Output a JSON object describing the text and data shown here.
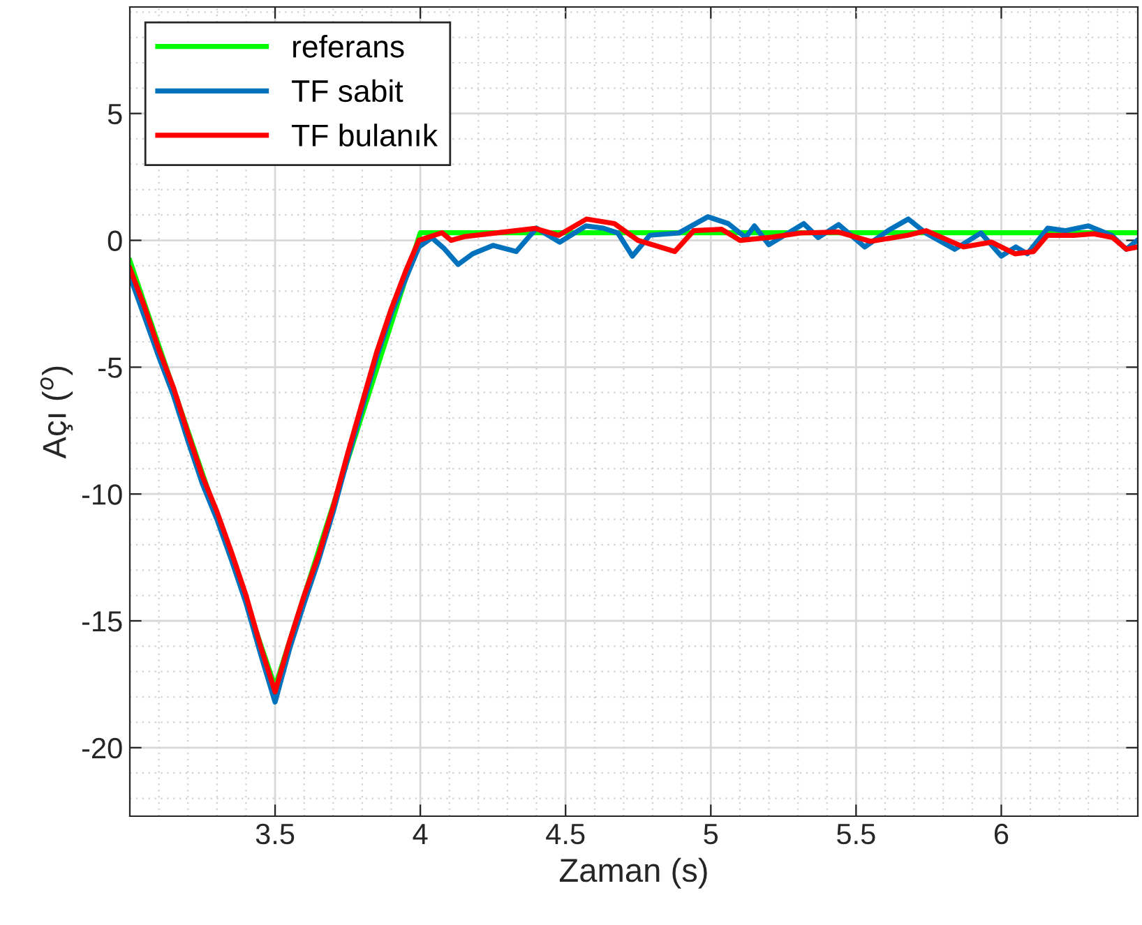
{
  "chart_data": {
    "type": "line",
    "xlabel": "Zaman (s)",
    "ylabel": "Açı ($^{o}$)",
    "xlim": [
      3.0,
      6.47
    ],
    "ylim": [
      -22.7,
      9.2
    ],
    "xticks": [
      3.5,
      4,
      4.5,
      5,
      5.5,
      6
    ],
    "yticks": [
      -20,
      -15,
      -10,
      -5,
      0,
      5
    ],
    "grid": true,
    "legend": "top left",
    "line_style": "solid",
    "marker": "none",
    "series": [
      {
        "name": "referans",
        "color": "#00ff00",
        "x": [
          3.0,
          3.5,
          4.0,
          6.47
        ],
        "values": [
          -0.8,
          -17.6,
          0.3,
          0.3
        ]
      },
      {
        "name": "TF sabit",
        "color": "#0072bd",
        "x": [
          3.0,
          3.05,
          3.1,
          3.15,
          3.2,
          3.25,
          3.3,
          3.35,
          3.4,
          3.45,
          3.5,
          3.55,
          3.6,
          3.65,
          3.7,
          3.75,
          3.8,
          3.85,
          3.9,
          3.95,
          3.995,
          4.04,
          4.08,
          4.13,
          4.18,
          4.25,
          4.33,
          4.4,
          4.48,
          4.57,
          4.63,
          4.68,
          4.73,
          4.79,
          4.89,
          4.99,
          5.06,
          5.12,
          5.15,
          5.2,
          5.32,
          5.37,
          5.44,
          5.53,
          5.61,
          5.68,
          5.74,
          5.84,
          5.93,
          6.0,
          6.05,
          6.09,
          6.16,
          6.22,
          6.3,
          6.38,
          6.43,
          6.47
        ],
        "values": [
          -1.4,
          -3.0,
          -4.6,
          -6.1,
          -7.9,
          -9.6,
          -11.0,
          -12.6,
          -14.3,
          -16.3,
          -18.2,
          -16.1,
          -14.3,
          -12.6,
          -10.7,
          -8.6,
          -6.6,
          -4.6,
          -2.9,
          -1.5,
          -0.26,
          0.1,
          -0.3,
          -0.95,
          -0.53,
          -0.2,
          -0.44,
          0.48,
          -0.07,
          0.57,
          0.48,
          0.29,
          -0.62,
          0.2,
          0.29,
          0.93,
          0.66,
          0.11,
          0.57,
          -0.17,
          0.66,
          0.11,
          0.62,
          -0.26,
          0.38,
          0.84,
          0.29,
          -0.35,
          0.29,
          -0.62,
          -0.26,
          -0.53,
          0.48,
          0.38,
          0.57,
          0.2,
          -0.35,
          0.02
        ]
      },
      {
        "name": "TF bulanık",
        "color": "#ff0000",
        "x": [
          3.0,
          3.05,
          3.1,
          3.15,
          3.2,
          3.25,
          3.3,
          3.35,
          3.4,
          3.45,
          3.5,
          3.55,
          3.6,
          3.65,
          3.7,
          3.75,
          3.8,
          3.85,
          3.9,
          3.95,
          3.995,
          4.075,
          4.106,
          4.154,
          4.236,
          4.395,
          4.476,
          4.572,
          4.668,
          4.749,
          4.876,
          4.941,
          5.037,
          5.101,
          5.212,
          5.309,
          5.438,
          5.55,
          5.678,
          5.742,
          5.87,
          5.966,
          6.047,
          6.111,
          6.159,
          6.255,
          6.319,
          6.383,
          6.431,
          6.47
        ],
        "values": [
          -1.1,
          -2.6,
          -4.3,
          -5.8,
          -7.6,
          -9.3,
          -10.7,
          -12.3,
          -14.0,
          -16.0,
          -17.8,
          -15.8,
          -14.0,
          -12.4,
          -10.5,
          -8.4,
          -6.4,
          -4.4,
          -2.7,
          -1.2,
          0.0,
          0.3,
          0.0,
          0.15,
          0.26,
          0.47,
          0.2,
          0.84,
          0.66,
          0.0,
          -0.44,
          0.38,
          0.44,
          0.0,
          0.13,
          0.29,
          0.33,
          -0.04,
          0.2,
          0.38,
          -0.26,
          -0.07,
          -0.53,
          -0.44,
          0.2,
          0.2,
          0.26,
          0.11,
          -0.35,
          -0.26
        ]
      }
    ]
  }
}
